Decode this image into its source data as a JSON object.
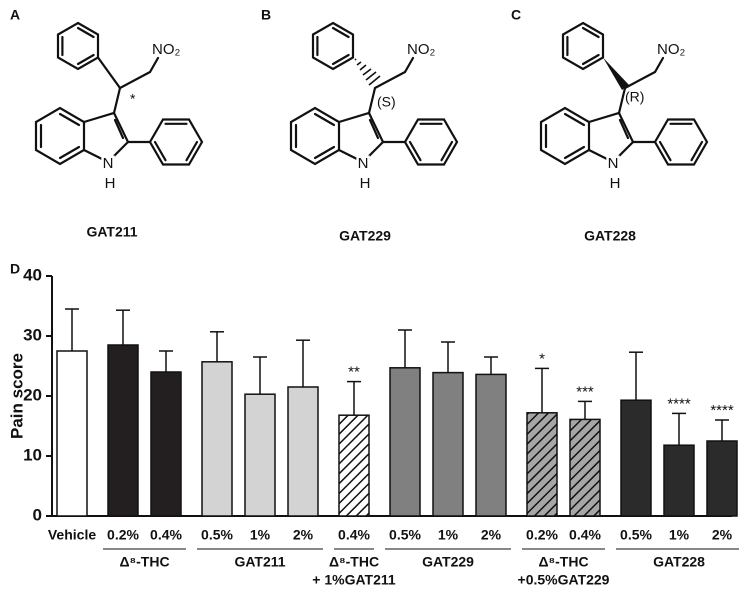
{
  "panels": [
    {
      "letter": "A",
      "stereo": "*",
      "nitro": "NO₂",
      "nitrogen": "N",
      "hydrogen": "H",
      "name": "GAT211"
    },
    {
      "letter": "B",
      "stereo": "(S)",
      "nitro": "NO₂",
      "nitrogen": "N",
      "hydrogen": "H",
      "name": "GAT229"
    },
    {
      "letter": "C",
      "stereo": "(R)",
      "nitro": "NO₂",
      "nitrogen": "N",
      "hydrogen": "H",
      "name": "GAT228"
    }
  ],
  "chart_data": {
    "type": "bar",
    "panel_letter": "D",
    "ylabel": "Pain score",
    "ylim": [
      0,
      40
    ],
    "yticks": [
      0,
      10,
      20,
      30,
      40
    ],
    "groups": [
      {
        "categories": [
          "Vehicle"
        ],
        "values": [
          27.5
        ],
        "errors": [
          7
        ],
        "annotations": [
          null
        ],
        "color": "#ffffff",
        "hatch": false
      },
      {
        "label": [
          "Δ⁸-THC"
        ],
        "categories": [
          "0.2%",
          "0.4%"
        ],
        "values": [
          28.5,
          24
        ],
        "errors": [
          5.8,
          3.5
        ],
        "annotations": [
          null,
          null
        ],
        "color": "#231f20",
        "hatch": false
      },
      {
        "label": [
          "GAT211"
        ],
        "categories": [
          "0.5%",
          "1%",
          "2%"
        ],
        "values": [
          25.7,
          20.3,
          21.5
        ],
        "errors": [
          5,
          6.2,
          7.8
        ],
        "annotations": [
          null,
          null,
          null
        ],
        "color": "#d3d3d3",
        "hatch": false
      },
      {
        "label": [
          "Δ⁸-THC",
          "+ 1%GAT211"
        ],
        "categories": [
          "0.4%"
        ],
        "values": [
          16.8
        ],
        "errors": [
          5.6
        ],
        "annotations": [
          "**"
        ],
        "color": "#ffffff",
        "hatch": true
      },
      {
        "label": [
          "GAT229"
        ],
        "categories": [
          "0.5%",
          "1%",
          "2%"
        ],
        "values": [
          24.7,
          23.9,
          23.6
        ],
        "errors": [
          6.3,
          5.1,
          2.9
        ],
        "annotations": [
          null,
          null,
          null
        ],
        "color": "#808080",
        "hatch": false
      },
      {
        "label": [
          "Δ⁸-THC",
          "+0.5%GAT229"
        ],
        "categories": [
          "0.2%",
          "0.4%"
        ],
        "values": [
          17.2,
          16.1
        ],
        "errors": [
          7.4,
          3
        ],
        "annotations": [
          "*",
          "***"
        ],
        "color": "#a6a6a6",
        "hatch": true
      },
      {
        "label": [
          "GAT228"
        ],
        "categories": [
          "0.5%",
          "1%",
          "2%"
        ],
        "values": [
          19.3,
          11.8,
          12.5
        ],
        "errors": [
          8,
          5.3,
          3.5
        ],
        "annotations": [
          null,
          "****",
          "****"
        ],
        "color": "#2b2b2b",
        "hatch": false
      }
    ]
  }
}
